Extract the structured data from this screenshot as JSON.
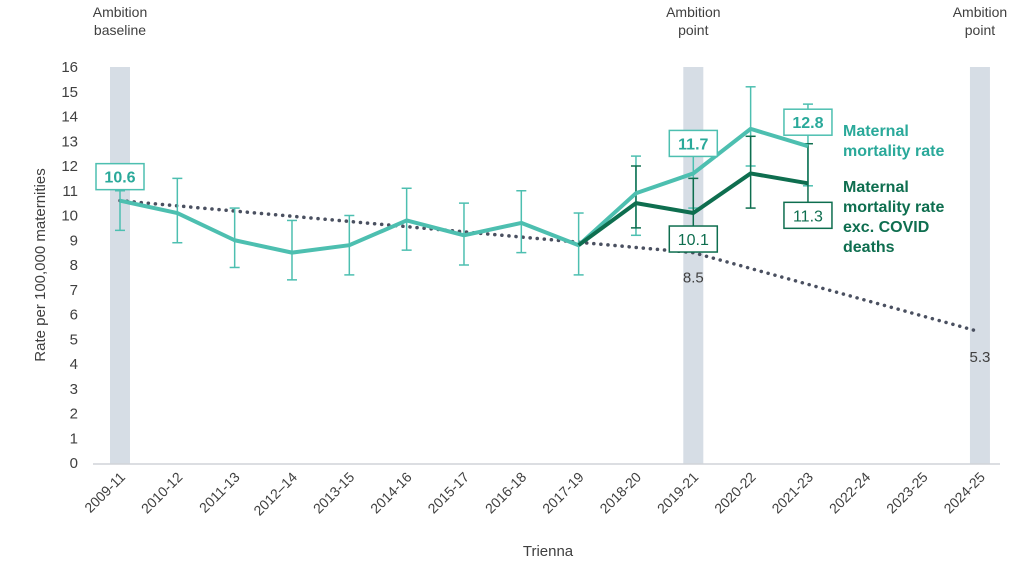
{
  "chart_data": {
    "type": "line",
    "xlabel": "Trienna",
    "ylabel": "Rate per 100,000 maternities",
    "ylim": [
      0,
      16
    ],
    "yticks": [
      0,
      1,
      2,
      3,
      4,
      5,
      6,
      7,
      8,
      9,
      10,
      11,
      12,
      13,
      14,
      15,
      16
    ],
    "grid": false,
    "categories": [
      "2009-11",
      "2010-12",
      "2011-13",
      "2012–14",
      "2013-15",
      "2014-16",
      "2015-17",
      "2016-18",
      "2017-19",
      "2018-20",
      "2019-21",
      "2020-22",
      "2021-23",
      "2022-24",
      "2023-25",
      "2024-25"
    ],
    "series": [
      {
        "name": "Maternal mortality rate",
        "color": "#4dbfb0",
        "values": [
          10.6,
          10.1,
          9.0,
          8.5,
          8.8,
          9.8,
          9.2,
          9.7,
          8.8,
          10.9,
          11.7,
          13.5,
          12.8,
          null,
          null,
          null
        ],
        "lower": [
          9.4,
          8.9,
          7.9,
          7.4,
          7.6,
          8.6,
          8.0,
          8.5,
          7.6,
          9.2,
          10.3,
          12.0,
          11.2,
          null,
          null,
          null
        ],
        "upper": [
          11.0,
          11.5,
          10.3,
          9.8,
          10.0,
          11.1,
          10.5,
          11.0,
          10.1,
          12.4,
          13.2,
          15.2,
          14.5,
          null,
          null,
          null
        ],
        "labels": {
          "0": "10.6",
          "10": "11.7",
          "12": "12.8"
        }
      },
      {
        "name": "Maternal mortality rate exc. COVID deaths",
        "color": "#0e6e4f",
        "values": [
          null,
          null,
          null,
          null,
          null,
          null,
          null,
          null,
          8.8,
          10.5,
          10.1,
          11.7,
          11.3,
          null,
          null,
          null
        ],
        "lower": [
          null,
          null,
          null,
          null,
          null,
          null,
          null,
          null,
          null,
          9.5,
          8.7,
          10.3,
          9.8,
          null,
          null,
          null
        ],
        "upper": [
          null,
          null,
          null,
          null,
          null,
          null,
          null,
          null,
          null,
          12.0,
          11.5,
          13.2,
          12.9,
          null,
          null,
          null
        ],
        "labels": {
          "10": "10.1",
          "12": "11.3"
        }
      },
      {
        "style": "dotted",
        "color": "#4a5060",
        "points": [
          {
            "x": "2009-11",
            "y": 10.6
          },
          {
            "x": "2019-21",
            "y": 8.5
          },
          {
            "x": "2024-25",
            "y": 5.3
          }
        ],
        "labels": {
          "2019-21": "8.5",
          "2024-25": "5.3"
        }
      }
    ],
    "ambition_markers": [
      {
        "x": "2009-11",
        "label_lines": [
          "Ambition",
          "baseline"
        ]
      },
      {
        "x": "2019-21",
        "label_lines": [
          "Ambition",
          "point"
        ]
      },
      {
        "x": "2024-25",
        "label_lines": [
          "Ambition",
          "point"
        ]
      }
    ],
    "legend": [
      {
        "lines": [
          "Maternal",
          "mortality rate"
        ],
        "color": "#2aa99a"
      },
      {
        "lines": [
          "Maternal",
          "mortality rate",
          "exc. COVID",
          "deaths"
        ],
        "color": "#0e6e4f"
      }
    ],
    "marker_color": "#d6dde5"
  }
}
